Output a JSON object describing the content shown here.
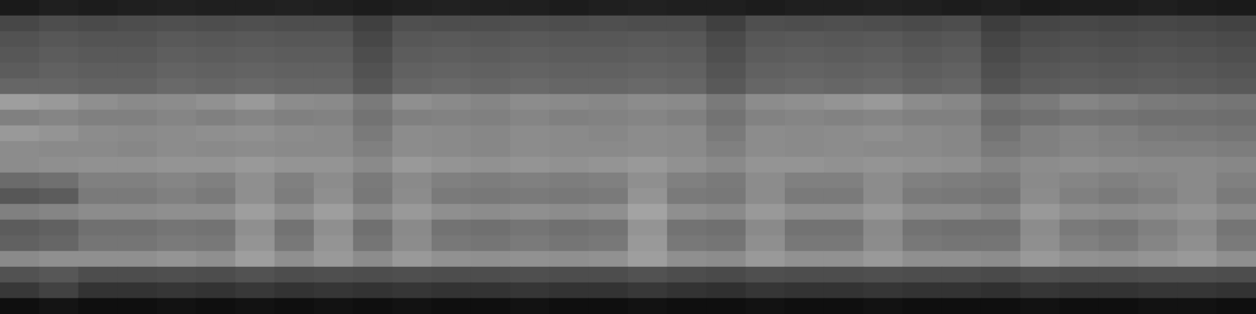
{
  "chart_data": {
    "type": "heatmap",
    "tick_labels": false,
    "color_range": [
      0,
      100
    ],
    "cells": [
      [
        10,
        12,
        11,
        12,
        13,
        12,
        12,
        13,
        12,
        11,
        12,
        13,
        12,
        12,
        11,
        12,
        13,
        12,
        12,
        11,
        12,
        12,
        13,
        12,
        11,
        12,
        10,
        11,
        11,
        12,
        11,
        10
      ],
      [
        28,
        30,
        29,
        30,
        31,
        30,
        31,
        30,
        30,
        25,
        31,
        30,
        30,
        31,
        30,
        31,
        30,
        30,
        25,
        31,
        30,
        31,
        30,
        29,
        30,
        24,
        27,
        28,
        27,
        28,
        27,
        26
      ],
      [
        32,
        34,
        33,
        33,
        35,
        34,
        35,
        34,
        34,
        28,
        34,
        35,
        34,
        35,
        34,
        34,
        35,
        34,
        29,
        34,
        35,
        34,
        35,
        33,
        34,
        27,
        30,
        31,
        30,
        31,
        30,
        29
      ],
      [
        34,
        36,
        35,
        35,
        37,
        36,
        37,
        36,
        36,
        30,
        36,
        37,
        36,
        37,
        36,
        36,
        37,
        36,
        31,
        36,
        37,
        36,
        37,
        35,
        36,
        29,
        32,
        33,
        32,
        33,
        32,
        31
      ],
      [
        36,
        38,
        37,
        37,
        39,
        38,
        39,
        38,
        38,
        32,
        38,
        39,
        38,
        39,
        38,
        38,
        39,
        38,
        33,
        38,
        39,
        38,
        39,
        37,
        38,
        31,
        34,
        35,
        34,
        35,
        34,
        33
      ],
      [
        40,
        40,
        39,
        39,
        41,
        40,
        41,
        40,
        40,
        34,
        40,
        41,
        40,
        41,
        40,
        40,
        41,
        40,
        35,
        40,
        41,
        40,
        41,
        39,
        40,
        33,
        36,
        37,
        36,
        37,
        36,
        35
      ],
      [
        62,
        60,
        56,
        54,
        55,
        57,
        60,
        55,
        54,
        48,
        56,
        54,
        52,
        55,
        54,
        53,
        55,
        54,
        48,
        55,
        56,
        58,
        60,
        55,
        53,
        45,
        48,
        52,
        50,
        48,
        47,
        46
      ],
      [
        50,
        52,
        50,
        50,
        52,
        50,
        52,
        50,
        51,
        45,
        50,
        51,
        50,
        52,
        50,
        51,
        52,
        50,
        45,
        51,
        52,
        51,
        52,
        50,
        50,
        42,
        44,
        46,
        45,
        44,
        44,
        43
      ],
      [
        60,
        58,
        55,
        54,
        55,
        56,
        57,
        55,
        54,
        48,
        55,
        54,
        53,
        55,
        54,
        53,
        55,
        54,
        48,
        55,
        54,
        55,
        56,
        54,
        53,
        45,
        50,
        52,
        50,
        48,
        47,
        46
      ],
      [
        55,
        54,
        54,
        53,
        55,
        54,
        55,
        54,
        54,
        50,
        55,
        54,
        53,
        55,
        54,
        54,
        55,
        54,
        50,
        55,
        54,
        55,
        54,
        54,
        53,
        48,
        50,
        52,
        51,
        50,
        50,
        49
      ],
      [
        55,
        56,
        57,
        57,
        58,
        58,
        60,
        58,
        58,
        54,
        60,
        58,
        57,
        58,
        57,
        58,
        60,
        57,
        54,
        58,
        58,
        57,
        58,
        57,
        56,
        52,
        55,
        56,
        55,
        54,
        54,
        53
      ],
      [
        42,
        44,
        50,
        50,
        52,
        50,
        56,
        50,
        55,
        48,
        54,
        50,
        49,
        50,
        49,
        50,
        56,
        50,
        48,
        55,
        50,
        50,
        55,
        50,
        49,
        48,
        54,
        52,
        50,
        52,
        54,
        50
      ],
      [
        34,
        36,
        48,
        48,
        50,
        48,
        56,
        49,
        56,
        47,
        55,
        48,
        47,
        48,
        47,
        48,
        58,
        48,
        47,
        55,
        48,
        48,
        55,
        48,
        47,
        46,
        55,
        50,
        48,
        50,
        54,
        48
      ],
      [
        50,
        52,
        55,
        55,
        56,
        56,
        62,
        56,
        62,
        54,
        60,
        56,
        55,
        56,
        55,
        56,
        64,
        56,
        54,
        60,
        56,
        56,
        60,
        55,
        55,
        52,
        60,
        56,
        55,
        56,
        58,
        54
      ],
      [
        36,
        38,
        44,
        44,
        46,
        45,
        56,
        45,
        56,
        44,
        54,
        45,
        44,
        46,
        44,
        45,
        58,
        45,
        44,
        54,
        45,
        45,
        54,
        45,
        44,
        44,
        55,
        48,
        46,
        50,
        54,
        46
      ],
      [
        38,
        40,
        46,
        46,
        48,
        47,
        58,
        47,
        58,
        46,
        55,
        47,
        46,
        48,
        46,
        47,
        60,
        47,
        46,
        56,
        47,
        47,
        55,
        47,
        46,
        46,
        56,
        50,
        48,
        52,
        56,
        48
      ],
      [
        54,
        56,
        56,
        56,
        58,
        56,
        62,
        56,
        60,
        55,
        60,
        57,
        56,
        57,
        56,
        57,
        62,
        56,
        55,
        60,
        57,
        57,
        60,
        56,
        56,
        55,
        60,
        57,
        56,
        58,
        60,
        56
      ],
      [
        32,
        34,
        30,
        30,
        31,
        30,
        32,
        30,
        31,
        30,
        31,
        30,
        30,
        31,
        30,
        30,
        32,
        30,
        29,
        31,
        30,
        30,
        31,
        30,
        30,
        29,
        31,
        30,
        30,
        31,
        31,
        30
      ],
      [
        22,
        26,
        20,
        20,
        21,
        20,
        22,
        20,
        21,
        20,
        21,
        20,
        20,
        21,
        20,
        20,
        22,
        20,
        19,
        21,
        20,
        20,
        21,
        20,
        20,
        19,
        21,
        20,
        20,
        21,
        21,
        20
      ],
      [
        6,
        8,
        6,
        6,
        7,
        6,
        7,
        6,
        7,
        6,
        7,
        6,
        6,
        7,
        6,
        6,
        7,
        6,
        6,
        7,
        6,
        6,
        7,
        6,
        6,
        6,
        7,
        6,
        6,
        7,
        7,
        6
      ]
    ]
  }
}
